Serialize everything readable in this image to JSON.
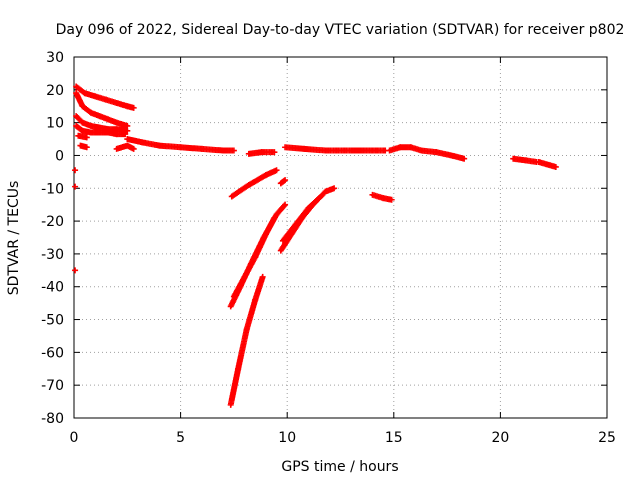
{
  "chart_data": {
    "type": "scatter",
    "title": "Day 096 of 2022, Sidereal Day-to-day VTEC variation (SDTVAR) for receiver p802",
    "xlabel": "GPS time / hours",
    "ylabel": "SDTVAR / TECUs",
    "xlim": [
      0,
      25
    ],
    "ylim": [
      -80,
      30
    ],
    "xticks": [
      0,
      5,
      10,
      15,
      20,
      25
    ],
    "yticks": [
      -80,
      -70,
      -60,
      -50,
      -40,
      -30,
      -20,
      -10,
      0,
      10,
      20,
      30
    ],
    "grid": true,
    "legend": "none",
    "marker": "+",
    "series_color": "#ff0000",
    "segments": [
      {
        "name": "arc-a",
        "points": [
          [
            0.1,
            21
          ],
          [
            0.5,
            19
          ],
          [
            1.0,
            18
          ],
          [
            1.5,
            17
          ],
          [
            2.0,
            16
          ],
          [
            2.5,
            15
          ],
          [
            2.8,
            14.5
          ]
        ]
      },
      {
        "name": "arc-b",
        "points": [
          [
            0.1,
            19
          ],
          [
            0.4,
            15
          ],
          [
            0.8,
            13
          ],
          [
            1.2,
            12
          ],
          [
            1.6,
            11
          ],
          [
            2.0,
            10
          ],
          [
            2.5,
            9
          ]
        ]
      },
      {
        "name": "arc-c",
        "points": [
          [
            0.1,
            12
          ],
          [
            0.4,
            10
          ],
          [
            0.8,
            9
          ],
          [
            1.2,
            8.5
          ],
          [
            1.6,
            8
          ],
          [
            2.0,
            8
          ],
          [
            2.5,
            7.5
          ]
        ]
      },
      {
        "name": "arc-d",
        "points": [
          [
            0.1,
            9
          ],
          [
            0.4,
            7.5
          ],
          [
            0.8,
            7
          ],
          [
            1.2,
            7
          ],
          [
            1.6,
            7
          ],
          [
            2.0,
            6.5
          ],
          [
            2.4,
            6.5
          ]
        ]
      },
      {
        "name": "arc-e",
        "points": [
          [
            0.2,
            6
          ],
          [
            0.6,
            5.5
          ]
        ]
      },
      {
        "name": "arc-f",
        "points": [
          [
            0.3,
            3
          ],
          [
            0.6,
            2.5
          ]
        ]
      },
      {
        "name": "arc-g",
        "points": [
          [
            2.0,
            2
          ],
          [
            2.5,
            3
          ],
          [
            2.8,
            2
          ]
        ]
      },
      {
        "name": "arc-h",
        "points": [
          [
            2.5,
            5
          ],
          [
            3.2,
            4
          ],
          [
            4.0,
            3
          ],
          [
            5.0,
            2.5
          ],
          [
            6.0,
            2
          ],
          [
            7.0,
            1.5
          ],
          [
            7.5,
            1.5
          ]
        ]
      },
      {
        "name": "arc-i",
        "points": [
          [
            8.2,
            0.5
          ],
          [
            8.8,
            1
          ],
          [
            9.4,
            1
          ]
        ]
      },
      {
        "name": "arc-j",
        "points": [
          [
            9.9,
            2.5
          ],
          [
            10.8,
            2
          ],
          [
            11.8,
            1.5
          ],
          [
            13,
            1.5
          ],
          [
            14,
            1.5
          ],
          [
            14.6,
            1.5
          ]
        ]
      },
      {
        "name": "arc-k",
        "points": [
          [
            14.8,
            1.5
          ],
          [
            15.3,
            2.5
          ],
          [
            15.8,
            2.5
          ],
          [
            16.3,
            1.5
          ],
          [
            17,
            1
          ],
          [
            17.7,
            0
          ],
          [
            18.3,
            -1
          ]
        ]
      },
      {
        "name": "arc-l",
        "points": [
          [
            20.6,
            -1
          ],
          [
            21.2,
            -1.5
          ],
          [
            21.7,
            -2
          ]
        ]
      },
      {
        "name": "arc-m",
        "points": [
          [
            21.8,
            -2
          ],
          [
            22.6,
            -3.5
          ]
        ]
      },
      {
        "name": "arc-n",
        "points": [
          [
            7.4,
            -12.5
          ],
          [
            8.2,
            -9
          ],
          [
            9.0,
            -6
          ],
          [
            9.5,
            -4.5
          ]
        ]
      },
      {
        "name": "arc-o",
        "points": [
          [
            9.7,
            -8.5
          ],
          [
            9.9,
            -7.5
          ]
        ]
      },
      {
        "name": "arc-p",
        "points": [
          [
            14.0,
            -12
          ],
          [
            14.5,
            -13
          ],
          [
            14.9,
            -13.5
          ]
        ]
      },
      {
        "name": "arc-q",
        "points": [
          [
            7.35,
            -46
          ],
          [
            7.8,
            -40
          ],
          [
            8.3,
            -33
          ],
          [
            8.9,
            -25
          ],
          [
            9.5,
            -18
          ],
          [
            9.9,
            -15
          ]
        ]
      },
      {
        "name": "arc-r",
        "points": [
          [
            7.5,
            -43
          ],
          [
            8.0,
            -37
          ],
          [
            8.5,
            -31
          ],
          [
            9.0,
            -24
          ],
          [
            9.4,
            -19
          ]
        ]
      },
      {
        "name": "arc-s",
        "points": [
          [
            9.7,
            -29
          ],
          [
            10.2,
            -24
          ],
          [
            10.7,
            -19
          ],
          [
            11.2,
            -15
          ],
          [
            11.8,
            -11
          ],
          [
            12.2,
            -10
          ]
        ]
      },
      {
        "name": "arc-t",
        "points": [
          [
            9.8,
            -26
          ],
          [
            10.4,
            -21
          ],
          [
            11.0,
            -16
          ],
          [
            11.5,
            -13
          ]
        ]
      },
      {
        "name": "arc-u",
        "points": [
          [
            7.35,
            -76
          ],
          [
            7.7,
            -65
          ],
          [
            8.1,
            -53
          ],
          [
            8.5,
            -44
          ],
          [
            8.85,
            -37
          ]
        ]
      },
      {
        "name": "iso-1",
        "points": [
          [
            0.05,
            -4.5
          ]
        ]
      },
      {
        "name": "iso-2",
        "points": [
          [
            0.05,
            -9.5
          ]
        ]
      },
      {
        "name": "iso-3",
        "points": [
          [
            0.05,
            -35
          ]
        ]
      }
    ]
  }
}
